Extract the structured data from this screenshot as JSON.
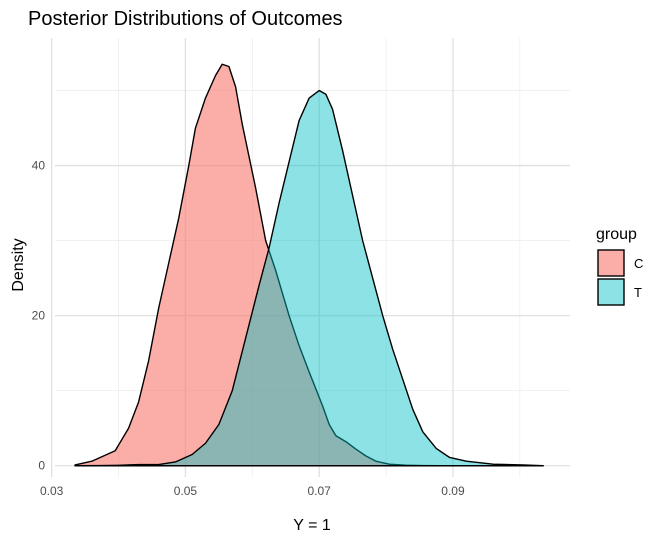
{
  "chart_data": {
    "type": "area",
    "title": "Posterior Distributions of Outcomes",
    "xlabel": "Y = 1",
    "ylabel": "Density",
    "xlim": [
      0.0305,
      0.1075
    ],
    "ylim": [
      -1.5,
      57
    ],
    "x_ticks": [
      0.03,
      0.05,
      0.07,
      0.09
    ],
    "x_tick_labels": [
      "0.03",
      "0.05",
      "0.07",
      "0.09"
    ],
    "x_minor_ticks": [
      0.04,
      0.06,
      0.08,
      0.1
    ],
    "y_ticks": [
      0,
      20,
      40
    ],
    "y_tick_labels": [
      "0",
      "20",
      "40"
    ],
    "y_minor_ticks": [
      10,
      30,
      50
    ],
    "grid": true,
    "legend": {
      "title": "group",
      "position": "right"
    },
    "series": [
      {
        "name": "C",
        "color": "#F8766D",
        "fill_opacity": 0.6,
        "x": [
          0.0335,
          0.036,
          0.0395,
          0.0415,
          0.043,
          0.0445,
          0.046,
          0.0475,
          0.049,
          0.0505,
          0.0515,
          0.053,
          0.0545,
          0.0555,
          0.0565,
          0.0575,
          0.0585,
          0.0605,
          0.062,
          0.0635,
          0.0655,
          0.067,
          0.0685,
          0.0705,
          0.0715,
          0.0725,
          0.074,
          0.0755,
          0.077,
          0.0785,
          0.0805,
          0.083,
          0.0855,
          0.088
        ],
        "values": [
          0.1,
          0.6,
          2.0,
          5.0,
          8.5,
          14.0,
          21.0,
          27.0,
          33.0,
          40.0,
          45.0,
          49.0,
          52.0,
          53.5,
          53.2,
          50.5,
          45.5,
          37.0,
          30.0,
          26.0,
          20.0,
          16.0,
          12.5,
          8.0,
          5.5,
          4.0,
          3.2,
          2.2,
          1.3,
          0.6,
          0.2,
          0.08,
          0.03,
          0.0
        ]
      },
      {
        "name": "T",
        "color": "#00BFC4",
        "fill_opacity": 0.45,
        "x": [
          0.0335,
          0.037,
          0.04,
          0.043,
          0.046,
          0.0485,
          0.051,
          0.053,
          0.055,
          0.057,
          0.059,
          0.061,
          0.0625,
          0.064,
          0.0655,
          0.067,
          0.0685,
          0.07,
          0.071,
          0.072,
          0.0735,
          0.075,
          0.0765,
          0.078,
          0.0795,
          0.081,
          0.0825,
          0.084,
          0.0855,
          0.0875,
          0.0895,
          0.092,
          0.096,
          0.1005,
          0.1035
        ],
        "values": [
          0.0,
          0.02,
          0.06,
          0.15,
          0.15,
          0.5,
          1.5,
          3.0,
          5.5,
          10.0,
          17.0,
          24.0,
          29.0,
          35.0,
          40.5,
          46.0,
          49.0,
          50.0,
          49.5,
          47.5,
          42.0,
          36.0,
          30.0,
          25.0,
          20.0,
          15.5,
          11.5,
          7.5,
          4.5,
          2.3,
          1.1,
          0.6,
          0.2,
          0.1,
          0.0
        ]
      }
    ]
  }
}
